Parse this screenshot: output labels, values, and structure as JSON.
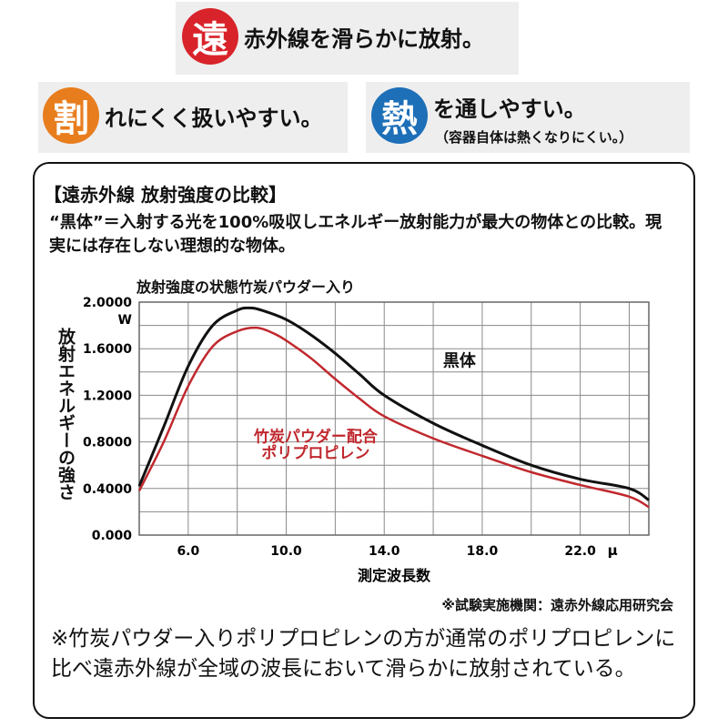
{
  "features": [
    {
      "badge": "遠",
      "color": "#d8232a",
      "text": "赤外線を滑らかに放射。",
      "sub": ""
    },
    {
      "badge": "割",
      "color": "#e87d1e",
      "text": "れにくく扱いやすい。",
      "sub": ""
    },
    {
      "badge": "熱",
      "color": "#1d6fb8",
      "text": "を通しやすい。",
      "sub": "（容器自体は熱くなりにくい。）"
    }
  ],
  "panel": {
    "title": "【遠赤外線 放射強度の比較】",
    "definition": "“黒体”＝入射する光を100%吸収しエネルギー放射能力が最大の物体との比較。現実には存在しない理想的な物体。",
    "institution": "※試験実施機関：遠赤外線応用研究会",
    "note": "※竹炭パウダー入りポリプロピレンの方が通常のポリプロピレンに比べ遠赤外線が全域の波長において滑らかに放射されている。"
  },
  "chart_data": {
    "type": "line",
    "title": "放射強度の状態竹炭パウダー入り",
    "xlabel": "測定波長数",
    "ylabel": "放射エネルギーの強さ",
    "y_unit": "W",
    "x_unit": "μ",
    "xlim": [
      4.0,
      24.8
    ],
    "ylim": [
      0.0,
      2.0
    ],
    "x_ticks": [
      "6.0",
      "10.0",
      "14.0",
      "18.0",
      "22.0"
    ],
    "y_ticks": [
      "0.000",
      "0.4000",
      "0.8000",
      "1.2000",
      "1.6000",
      "2.0000"
    ],
    "series": [
      {
        "name": "黒体",
        "color": "#111111",
        "x": [
          4.0,
          5.0,
          6.0,
          7.0,
          8.0,
          8.5,
          9.0,
          10.0,
          11.0,
          12.0,
          13.0,
          14.0,
          16.0,
          18.0,
          20.0,
          22.0,
          24.0,
          24.8
        ],
        "y": [
          0.42,
          0.93,
          1.45,
          1.8,
          1.93,
          1.95,
          1.93,
          1.85,
          1.72,
          1.56,
          1.38,
          1.2,
          0.96,
          0.77,
          0.6,
          0.48,
          0.4,
          0.3
        ]
      },
      {
        "name": "竹炭パウダー配合ポリプロピレン",
        "color": "#c0282e",
        "x": [
          4.0,
          5.0,
          6.0,
          7.0,
          8.0,
          8.8,
          9.5,
          10.0,
          11.0,
          12.0,
          13.0,
          14.0,
          16.0,
          18.0,
          20.0,
          22.0,
          24.0,
          24.8
        ],
        "y": [
          0.38,
          0.8,
          1.28,
          1.62,
          1.75,
          1.78,
          1.73,
          1.67,
          1.52,
          1.34,
          1.17,
          1.02,
          0.83,
          0.68,
          0.54,
          0.43,
          0.33,
          0.24
        ]
      }
    ],
    "annotations": [
      {
        "text": "黒体",
        "series": "黒体"
      },
      {
        "text": "竹炭パウダー配合",
        "series": "竹炭パウダー配合ポリプロピレン"
      },
      {
        "text": "ポリプロピレン",
        "series": "竹炭パウダー配合ポリプロピレン"
      }
    ]
  }
}
